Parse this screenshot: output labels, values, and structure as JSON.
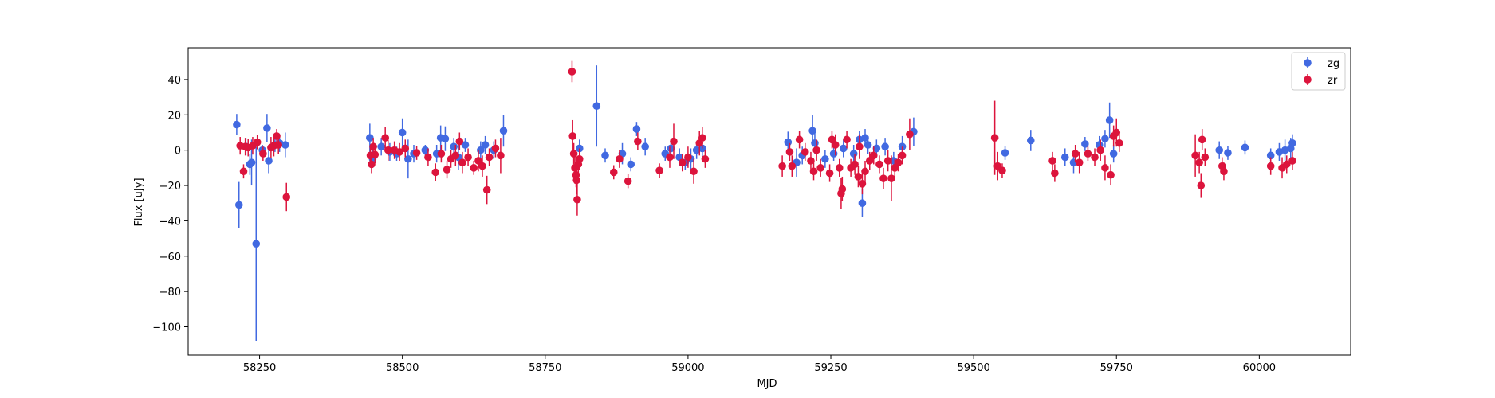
{
  "chart_data": {
    "type": "scatter",
    "title": "",
    "xlabel": "MJD",
    "ylabel": "Flux [uJy]",
    "xlim": [
      58125,
      60160
    ],
    "ylim": [
      -116,
      58
    ],
    "x_ticks": [
      58250,
      58500,
      58750,
      59000,
      59250,
      59500,
      59750,
      60000
    ],
    "x_tick_labels": [
      "58250",
      "58500",
      "58750",
      "59000",
      "59250",
      "59500",
      "59750",
      "60000"
    ],
    "y_ticks": [
      -100,
      -80,
      -60,
      -40,
      -20,
      0,
      20,
      40
    ],
    "y_tick_labels": [
      "−100",
      "−80",
      "−60",
      "−40",
      "−20",
      "0",
      "20",
      "40"
    ],
    "grid": false,
    "legend_position": "top-right",
    "series": [
      {
        "name": "zg",
        "color": "#4169e1",
        "points": [
          [
            58210,
            14.5,
            6
          ],
          [
            58214,
            -31,
            13
          ],
          [
            58226,
            2,
            5
          ],
          [
            58233,
            -8,
            6
          ],
          [
            58236,
            -7,
            13
          ],
          [
            58244,
            -53,
            55
          ],
          [
            58255,
            0,
            3
          ],
          [
            58263,
            12.5,
            8
          ],
          [
            58266,
            -6,
            7
          ],
          [
            58277,
            3,
            4
          ],
          [
            58285,
            4,
            5
          ],
          [
            58295,
            3,
            7
          ],
          [
            58443,
            7,
            8
          ],
          [
            58448,
            -5,
            5
          ],
          [
            58463,
            2,
            5
          ],
          [
            58478,
            -1,
            5
          ],
          [
            58490,
            -2,
            4
          ],
          [
            58500,
            10,
            8
          ],
          [
            58510,
            -5,
            11
          ],
          [
            58520,
            -2,
            5
          ],
          [
            58540,
            0,
            3
          ],
          [
            58560,
            -2,
            5
          ],
          [
            58567,
            7,
            7
          ],
          [
            58575,
            6.5,
            7
          ],
          [
            58590,
            2,
            5
          ],
          [
            58598,
            -4,
            7
          ],
          [
            58610,
            3,
            4
          ],
          [
            58637,
            0,
            5
          ],
          [
            58645,
            3,
            5
          ],
          [
            58660,
            0,
            5
          ],
          [
            58677,
            11,
            9
          ],
          [
            58810,
            1,
            5
          ],
          [
            58840,
            25,
            23
          ],
          [
            58855,
            -3,
            4
          ],
          [
            58885,
            -2,
            6
          ],
          [
            58900,
            -8,
            4
          ],
          [
            58910,
            12,
            4
          ],
          [
            58925,
            2,
            5
          ],
          [
            58960,
            -2,
            4
          ],
          [
            58970,
            1,
            5
          ],
          [
            58985,
            -4,
            5
          ],
          [
            58995,
            -7,
            4
          ],
          [
            59005,
            -5,
            6
          ],
          [
            59015,
            0,
            5
          ],
          [
            59025,
            1,
            6
          ],
          [
            59175,
            4.5,
            6
          ],
          [
            59190,
            -7,
            8
          ],
          [
            59200,
            -3,
            5
          ],
          [
            59218,
            11,
            9
          ],
          [
            59222,
            4,
            6
          ],
          [
            59240,
            -5,
            5
          ],
          [
            59255,
            -2,
            4
          ],
          [
            59272,
            1,
            5
          ],
          [
            59290,
            -2,
            5
          ],
          [
            59300,
            6,
            5
          ],
          [
            59305,
            -30,
            8
          ],
          [
            59310,
            7,
            5
          ],
          [
            59315,
            3,
            5
          ],
          [
            59330,
            1,
            5
          ],
          [
            59345,
            2,
            5
          ],
          [
            59360,
            -6,
            5
          ],
          [
            59375,
            2,
            6
          ],
          [
            59395,
            10.5,
            8
          ],
          [
            59600,
            5.5,
            6
          ],
          [
            59555,
            -1.5,
            4
          ],
          [
            59660,
            -4,
            5
          ],
          [
            59675,
            -7,
            6
          ],
          [
            59695,
            3.5,
            4
          ],
          [
            59720,
            3,
            5
          ],
          [
            59730,
            6.5,
            5
          ],
          [
            59738,
            17,
            10
          ],
          [
            59745,
            -2,
            5
          ],
          [
            59930,
            0,
            5
          ],
          [
            59945,
            -1.5,
            4
          ],
          [
            59975,
            1.5,
            4
          ],
          [
            60020,
            -3,
            4
          ],
          [
            60035,
            -1,
            5
          ],
          [
            60045,
            0,
            6
          ],
          [
            60055,
            1,
            6
          ],
          [
            60058,
            4,
            5
          ]
        ]
      },
      {
        "name": "zr",
        "color": "#dc143c",
        "points": [
          [
            58216,
            2.5,
            5
          ],
          [
            58222,
            -12,
            4
          ],
          [
            58225,
            2,
            5
          ],
          [
            58230,
            1.5,
            5
          ],
          [
            58238,
            2.5,
            5
          ],
          [
            58246,
            4.5,
            4
          ],
          [
            58256,
            -2,
            4
          ],
          [
            58270,
            1.5,
            6
          ],
          [
            58275,
            2.5,
            6
          ],
          [
            58280,
            8,
            4
          ],
          [
            58283,
            3,
            5
          ],
          [
            58297,
            -26.5,
            8
          ],
          [
            58444,
            -3,
            5
          ],
          [
            58446,
            -8,
            5
          ],
          [
            58449,
            2,
            5
          ],
          [
            58452,
            -2.5,
            5
          ],
          [
            58470,
            7,
            6
          ],
          [
            58475,
            0,
            6
          ],
          [
            58486,
            0,
            5
          ],
          [
            58495,
            -1,
            5
          ],
          [
            58505,
            1,
            5
          ],
          [
            58525,
            -1.5,
            4
          ],
          [
            58545,
            -4,
            5
          ],
          [
            58558,
            -12.5,
            5
          ],
          [
            58568,
            -2,
            5
          ],
          [
            58578,
            -11,
            5
          ],
          [
            58585,
            -5,
            5
          ],
          [
            58593,
            -3,
            6
          ],
          [
            58600,
            5,
            5
          ],
          [
            58605,
            -7,
            6
          ],
          [
            58615,
            -4,
            5
          ],
          [
            58625,
            -10,
            4
          ],
          [
            58633,
            -6,
            6
          ],
          [
            58640,
            -9,
            6
          ],
          [
            58648,
            -22.5,
            8
          ],
          [
            58652,
            -4,
            5
          ],
          [
            58663,
            1,
            5
          ],
          [
            58672,
            -3,
            10
          ],
          [
            58797,
            44.5,
            6
          ],
          [
            58798,
            8,
            9
          ],
          [
            58800,
            -2,
            6
          ],
          [
            58802,
            -10,
            9
          ],
          [
            58804,
            -14,
            7
          ],
          [
            58805,
            -17,
            8
          ],
          [
            58806,
            -28,
            9
          ],
          [
            58808,
            -8,
            5
          ],
          [
            58810,
            -5,
            6
          ],
          [
            58870,
            -12.5,
            4
          ],
          [
            58880,
            -5,
            5
          ],
          [
            58895,
            -17.5,
            4
          ],
          [
            58912,
            5,
            5
          ],
          [
            58950,
            -11.5,
            4
          ],
          [
            58968,
            -4,
            6
          ],
          [
            58975,
            5,
            10
          ],
          [
            58990,
            -7,
            5
          ],
          [
            59000,
            -4,
            6
          ],
          [
            59010,
            -12,
            7
          ],
          [
            59020,
            4,
            7
          ],
          [
            59025,
            7,
            6
          ],
          [
            59030,
            -5,
            5
          ],
          [
            59165,
            -9,
            6
          ],
          [
            59178,
            -1,
            5
          ],
          [
            59182,
            -9,
            6
          ],
          [
            59195,
            6,
            5
          ],
          [
            59205,
            -1,
            5
          ],
          [
            59215,
            -6,
            5
          ],
          [
            59220,
            -12,
            5
          ],
          [
            59225,
            0,
            6
          ],
          [
            59232,
            -10,
            5
          ],
          [
            59248,
            -13,
            5
          ],
          [
            59252,
            6,
            5
          ],
          [
            59258,
            3,
            6
          ],
          [
            59265,
            -10,
            5
          ],
          [
            59268,
            -24.5,
            9
          ],
          [
            59270,
            -22,
            7
          ],
          [
            59278,
            6,
            5
          ],
          [
            59285,
            -10,
            5
          ],
          [
            59292,
            -8,
            6
          ],
          [
            59298,
            -15,
            6
          ],
          [
            59300,
            2,
            7
          ],
          [
            59305,
            -19,
            6
          ],
          [
            59310,
            -12,
            6
          ],
          [
            59318,
            -6,
            5
          ],
          [
            59325,
            -3,
            5
          ],
          [
            59335,
            -8,
            5
          ],
          [
            59342,
            -16,
            6
          ],
          [
            59350,
            -6,
            6
          ],
          [
            59356,
            -16,
            13
          ],
          [
            59362,
            -10,
            5
          ],
          [
            59368,
            -7,
            5
          ],
          [
            59375,
            -3,
            5
          ],
          [
            59388,
            9,
            9
          ],
          [
            59537,
            7,
            21
          ],
          [
            59542,
            -9,
            8
          ],
          [
            59550,
            -11.5,
            4
          ],
          [
            59638,
            -6,
            5
          ],
          [
            59642,
            -13,
            5
          ],
          [
            59678,
            -2,
            5
          ],
          [
            59685,
            -7,
            6
          ],
          [
            59700,
            -2,
            4
          ],
          [
            59712,
            -4,
            5
          ],
          [
            59722,
            0,
            6
          ],
          [
            59730,
            -10,
            7
          ],
          [
            59740,
            -14,
            6
          ],
          [
            59745,
            8,
            6
          ],
          [
            59750,
            10,
            8
          ],
          [
            59755,
            4,
            5
          ],
          [
            59888,
            -3,
            12
          ],
          [
            59895,
            -7,
            6
          ],
          [
            59898,
            -20,
            7
          ],
          [
            59900,
            6,
            6
          ],
          [
            59905,
            -4,
            5
          ],
          [
            59935,
            -9,
            5
          ],
          [
            59938,
            -12,
            5
          ],
          [
            60020,
            -9,
            5
          ],
          [
            60040,
            -10,
            6
          ],
          [
            60048,
            -8,
            5
          ],
          [
            60058,
            -6,
            5
          ]
        ]
      }
    ]
  }
}
